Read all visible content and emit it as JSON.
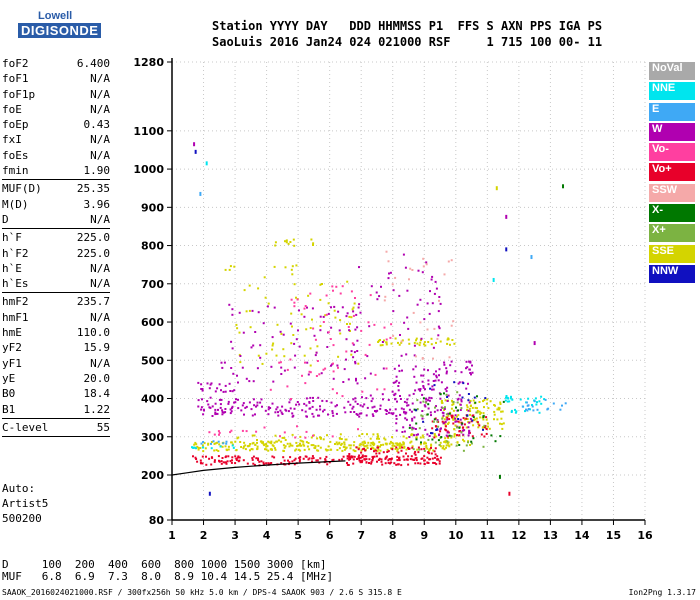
{
  "logo": {
    "top": "Lowell",
    "main": "DIGISONDE"
  },
  "header": {
    "line1": "Station YYYY DAY   DDD HHMMSS P1  FFS S AXN PPS IGA PS",
    "line2": "SaoLuis 2016 Jan24 024 021000 RSF     1 715 100 00- 11"
  },
  "params": [
    {
      "name": "foF2",
      "value": "6.400"
    },
    {
      "name": "foF1",
      "value": "N/A"
    },
    {
      "name": "foF1p",
      "value": "N/A"
    },
    {
      "name": "foE",
      "value": "N/A"
    },
    {
      "name": "foEp",
      "value": "0.43"
    },
    {
      "name": "fxI",
      "value": "N/A"
    },
    {
      "name": "foEs",
      "value": "N/A"
    },
    {
      "name": "fmin",
      "value": "1.90",
      "sep": true
    },
    {
      "name": "MUF(D)",
      "value": "25.35"
    },
    {
      "name": "M(D)",
      "value": "3.96"
    },
    {
      "name": "D",
      "value": "N/A",
      "sep": true
    },
    {
      "name": "h`F",
      "value": "225.0"
    },
    {
      "name": "h`F2",
      "value": "225.0"
    },
    {
      "name": "h`E",
      "value": "N/A"
    },
    {
      "name": "h`Es",
      "value": "N/A",
      "sep": true
    },
    {
      "name": "hmF2",
      "value": "235.7"
    },
    {
      "name": "hmF1",
      "value": "N/A"
    },
    {
      "name": "hmE",
      "value": "110.0"
    },
    {
      "name": "yF2",
      "value": "15.9"
    },
    {
      "name": "yF1",
      "value": "N/A"
    },
    {
      "name": "yE",
      "value": "20.0"
    },
    {
      "name": "B0",
      "value": "18.4"
    },
    {
      "name": "B1",
      "value": "1.22",
      "sep": true
    },
    {
      "name": "C-level",
      "value": "55",
      "sep": true
    }
  ],
  "auto": {
    "line1": "Auto:",
    "line2": "Artist5",
    "line3": "500200"
  },
  "legend": [
    {
      "label": "NoVal",
      "color": "#a9a9a9"
    },
    {
      "label": "NNE",
      "color": "#00e5ee"
    },
    {
      "label": "E",
      "color": "#3fa9f5"
    },
    {
      "label": "W",
      "color": "#b000b0"
    },
    {
      "label": "Vo-",
      "color": "#ff3fa0"
    },
    {
      "label": "Vo+",
      "color": "#e8002a"
    },
    {
      "label": "SSW",
      "color": "#f5a9a9"
    },
    {
      "label": "X-",
      "color": "#007800"
    },
    {
      "label": "X+",
      "color": "#7cb342"
    },
    {
      "label": "SSE",
      "color": "#d4d400"
    },
    {
      "label": "NNW",
      "color": "#1010c0"
    }
  ],
  "muf_table": {
    "d_line": "D     100  200  400  600  800 1000 1500 3000 [km]",
    "muf_line": "MUF   6.8  6.9  7.3  8.0  8.9 10.4 14.5 25.4 [MHz]"
  },
  "footer": {
    "left": "SAAOK_2016024021000.RSF / 300fx256h 50 kHz 5.0 km / DPS-4 SAAOK 903 / 2.6 S 315.8 E",
    "right": "Ion2Png 1.3.17"
  },
  "chart_data": {
    "type": "scatter",
    "title": "",
    "xlabel": "",
    "ylabel": "",
    "xlim": [
      1,
      16
    ],
    "ylim": [
      80,
      1280
    ],
    "y_scale": "mixed: coarse 80-200, linear 200-1280",
    "x_ticks": [
      1,
      2,
      3,
      4,
      5,
      6,
      7,
      8,
      9,
      10,
      11,
      12,
      13,
      14,
      15,
      16
    ],
    "y_ticks": [
      80,
      200,
      300,
      400,
      500,
      600,
      700,
      800,
      900,
      1000,
      1100,
      1280
    ],
    "grid": true,
    "legend_position": "right",
    "trace_curve": {
      "color": "#000000",
      "points": [
        [
          1.0,
          200
        ],
        [
          1.5,
          206
        ],
        [
          2.0,
          212
        ],
        [
          3.0,
          220
        ],
        [
          4.0,
          226
        ],
        [
          5.0,
          231
        ],
        [
          6.5,
          237
        ]
      ]
    },
    "series": [
      {
        "name": "SSE",
        "color": "#d4d400",
        "regions": [
          {
            "x": [
              1.6,
              9.8
            ],
            "y": [
              265,
              290
            ],
            "density": 0.85
          },
          {
            "x": [
              3.0,
              10.5
            ],
            "y": [
              280,
              310
            ],
            "density": 0.35
          },
          {
            "x": [
              7.5,
              10.0
            ],
            "y": [
              540,
              560
            ],
            "density": 0.6
          },
          {
            "x": [
              9.5,
              11.5
            ],
            "y": [
              320,
              400
            ],
            "density": 0.5
          },
          {
            "x": [
              3.0,
              7.0
            ],
            "y": [
              480,
              720
            ],
            "density": 0.05
          },
          {
            "x": [
              4.0,
              5.5
            ],
            "y": [
              800,
              820
            ],
            "density": 0.3
          },
          {
            "x": [
              2.6,
              5.0
            ],
            "y": [
              720,
              760
            ],
            "density": 0.08
          }
        ]
      },
      {
        "name": "Vo+",
        "color": "#e8002a",
        "regions": [
          {
            "x": [
              1.6,
              9.5
            ],
            "y": [
              228,
              252
            ],
            "density": 0.8
          },
          {
            "x": [
              6.5,
              9.5
            ],
            "y": [
              240,
              275
            ],
            "density": 0.5
          },
          {
            "x": [
              9.2,
              11.0
            ],
            "y": [
              300,
              360
            ],
            "density": 0.35
          }
        ]
      },
      {
        "name": "W",
        "color": "#b000b0",
        "regions": [
          {
            "x": [
              1.8,
              8.5
            ],
            "y": [
              355,
              405
            ],
            "density": 0.4
          },
          {
            "x": [
              1.8,
              3.0
            ],
            "y": [
              420,
              445
            ],
            "density": 0.5
          },
          {
            "x": [
              2.5,
              7.0
            ],
            "y": [
              440,
              650
            ],
            "density": 0.07
          },
          {
            "x": [
              6.5,
              9.5
            ],
            "y": [
              400,
              780
            ],
            "density": 0.05
          },
          {
            "x": [
              8.0,
              10.5
            ],
            "y": [
              300,
              500
            ],
            "density": 0.25
          }
        ]
      },
      {
        "name": "Vo-",
        "color": "#ff3fa0",
        "regions": [
          {
            "x": [
              2.0,
              7.0
            ],
            "y": [
              300,
              330
            ],
            "density": 0.1
          },
          {
            "x": [
              4.0,
              8.0
            ],
            "y": [
              400,
              700
            ],
            "density": 0.04
          }
        ]
      },
      {
        "name": "NNE",
        "color": "#00e5ee",
        "regions": [
          {
            "x": [
              1.6,
              3.0
            ],
            "y": [
              272,
              282
            ],
            "density": 0.6
          },
          {
            "x": [
              11.5,
              12.8
            ],
            "y": [
              365,
              410
            ],
            "density": 0.4
          }
        ]
      },
      {
        "name": "E",
        "color": "#3fa9f5",
        "regions": [
          {
            "x": [
              1.6,
              2.8
            ],
            "y": [
              282,
              292
            ],
            "density": 0.5
          },
          {
            "x": [
              12.0,
              13.5
            ],
            "y": [
              370,
              400
            ],
            "density": 0.3
          }
        ]
      },
      {
        "name": "X+",
        "color": "#7cb342",
        "regions": [
          {
            "x": [
              8.5,
              11.0
            ],
            "y": [
              260,
              420
            ],
            "density": 0.08
          }
        ]
      },
      {
        "name": "X-",
        "color": "#007800",
        "regions": [
          {
            "x": [
              8.5,
              11.5
            ],
            "y": [
              280,
              420
            ],
            "density": 0.06
          }
        ]
      },
      {
        "name": "NNW",
        "color": "#1010c0",
        "regions": [
          {
            "x": [
              8.5,
              11.0
            ],
            "y": [
              300,
              450
            ],
            "density": 0.04
          }
        ]
      },
      {
        "name": "SSW",
        "color": "#f5a9a9",
        "regions": [
          {
            "x": [
              7.5,
              10.0
            ],
            "y": [
              500,
              800
            ],
            "density": 0.03
          }
        ]
      }
    ],
    "isolated_points": [
      {
        "x": 1.7,
        "y": 1065,
        "color": "#b000b0"
      },
      {
        "x": 1.75,
        "y": 1045,
        "color": "#1010c0"
      },
      {
        "x": 1.9,
        "y": 935,
        "color": "#3fa9f5"
      },
      {
        "x": 2.1,
        "y": 1015,
        "color": "#00e5ee"
      },
      {
        "x": 13.4,
        "y": 955,
        "color": "#007800"
      },
      {
        "x": 11.6,
        "y": 875,
        "color": "#b000b0"
      },
      {
        "x": 11.3,
        "y": 950,
        "color": "#d4d400"
      },
      {
        "x": 11.6,
        "y": 790,
        "color": "#1010c0"
      },
      {
        "x": 12.4,
        "y": 770,
        "color": "#3fa9f5"
      },
      {
        "x": 12.5,
        "y": 545,
        "color": "#b000b0"
      },
      {
        "x": 11.2,
        "y": 710,
        "color": "#00e5ee"
      },
      {
        "x": 11.7,
        "y": 150,
        "color": "#e8002a"
      },
      {
        "x": 11.4,
        "y": 195,
        "color": "#007800"
      },
      {
        "x": 2.2,
        "y": 150,
        "color": "#1010c0"
      }
    ]
  }
}
